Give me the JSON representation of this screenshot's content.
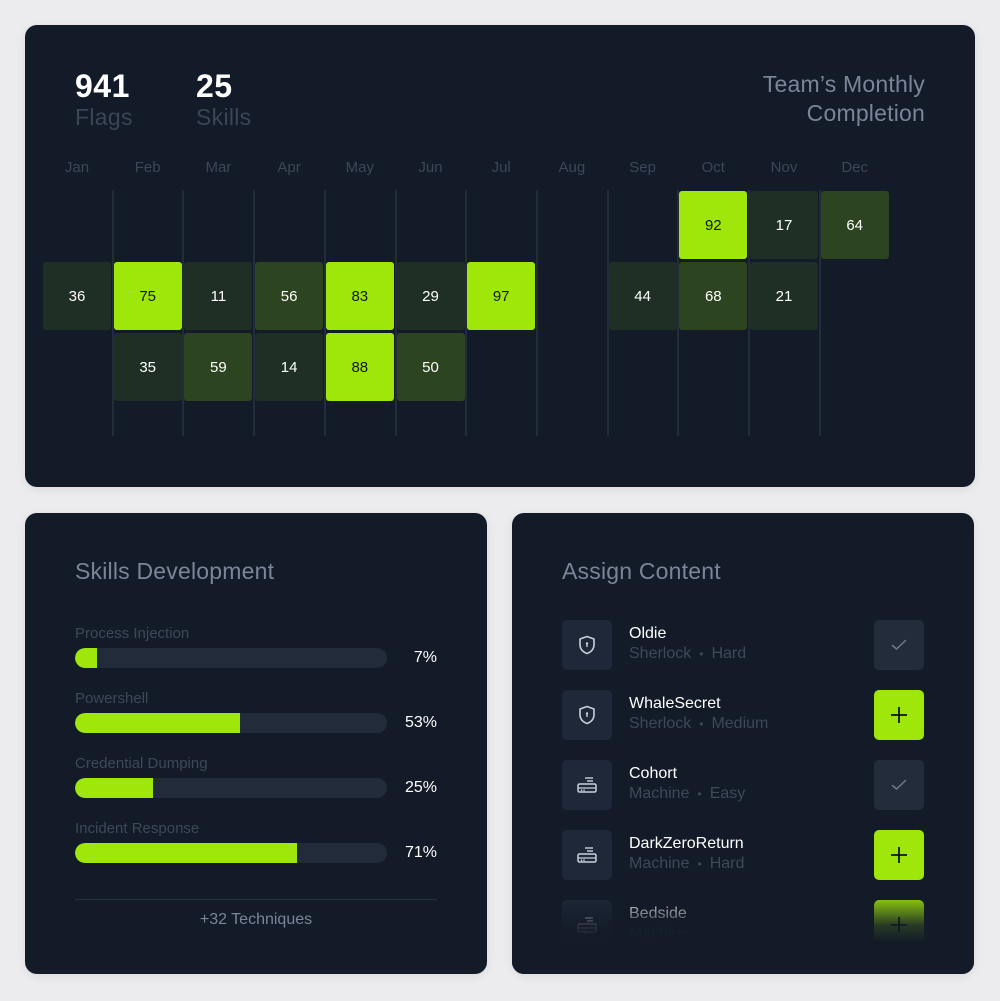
{
  "stats": [
    {
      "value": "941",
      "label": "Flags"
    },
    {
      "value": "25",
      "label": "Skills"
    }
  ],
  "completion": {
    "title_line1": "Team’s Monthly",
    "title_line2": "Completion",
    "months": [
      "Jan",
      "Feb",
      "Mar",
      "Apr",
      "May",
      "Jun",
      "Jul",
      "Aug",
      "Sep",
      "Oct",
      "Nov",
      "Dec"
    ],
    "cells": [
      {
        "month": "Oct",
        "row": 0,
        "value": "92",
        "level": "hi"
      },
      {
        "month": "Nov",
        "row": 0,
        "value": "17",
        "level": "lo"
      },
      {
        "month": "Dec",
        "row": 0,
        "value": "64",
        "level": "mid"
      },
      {
        "month": "Jan",
        "row": 1,
        "value": "36",
        "level": "lo"
      },
      {
        "month": "Feb",
        "row": 1,
        "value": "75",
        "level": "hi"
      },
      {
        "month": "Mar",
        "row": 1,
        "value": "11",
        "level": "lo"
      },
      {
        "month": "Apr",
        "row": 1,
        "value": "56",
        "level": "mid"
      },
      {
        "month": "May",
        "row": 1,
        "value": "83",
        "level": "hi"
      },
      {
        "month": "Jun",
        "row": 1,
        "value": "29",
        "level": "lo"
      },
      {
        "month": "Jul",
        "row": 1,
        "value": "97",
        "level": "hi"
      },
      {
        "month": "Sep",
        "row": 1,
        "value": "44",
        "level": "lo"
      },
      {
        "month": "Oct",
        "row": 1,
        "value": "68",
        "level": "mid"
      },
      {
        "month": "Nov",
        "row": 1,
        "value": "21",
        "level": "lo"
      },
      {
        "month": "Feb",
        "row": 2,
        "value": "35",
        "level": "lo"
      },
      {
        "month": "Mar",
        "row": 2,
        "value": "59",
        "level": "mid"
      },
      {
        "month": "Apr",
        "row": 2,
        "value": "14",
        "level": "lo"
      },
      {
        "month": "May",
        "row": 2,
        "value": "88",
        "level": "hi"
      },
      {
        "month": "Jun",
        "row": 2,
        "value": "50",
        "level": "mid"
      }
    ]
  },
  "skills": {
    "title": "Skills Development",
    "items": [
      {
        "name": "Process Injection",
        "percent": 7,
        "label": "7%"
      },
      {
        "name": "Powershell",
        "percent": 53,
        "label": "53%"
      },
      {
        "name": "Credential Dumping",
        "percent": 25,
        "label": "25%"
      },
      {
        "name": "Incident Response",
        "percent": 71,
        "label": "71%"
      }
    ],
    "more": "+32 Techniques"
  },
  "assign": {
    "title": "Assign Content",
    "items": [
      {
        "name": "Oldie",
        "type": "Sherlock",
        "difficulty": "Hard",
        "icon": "shield-icon",
        "state": "assigned"
      },
      {
        "name": "WhaleSecret",
        "type": "Sherlock",
        "difficulty": "Medium",
        "icon": "shield-icon",
        "state": "add"
      },
      {
        "name": "Cohort",
        "type": "Machine",
        "difficulty": "Easy",
        "icon": "server-icon",
        "state": "assigned"
      },
      {
        "name": "DarkZeroReturn",
        "type": "Machine",
        "difficulty": "Hard",
        "icon": "server-icon",
        "state": "add"
      },
      {
        "name": "Bedside",
        "type": "Machine",
        "difficulty": "",
        "icon": "server-icon",
        "state": "add"
      }
    ],
    "separator": "•"
  },
  "colors": {
    "accent": "#9fe60a",
    "card": "#131b28",
    "mid_green": "#2c4420",
    "low_green": "#1f2f25"
  }
}
